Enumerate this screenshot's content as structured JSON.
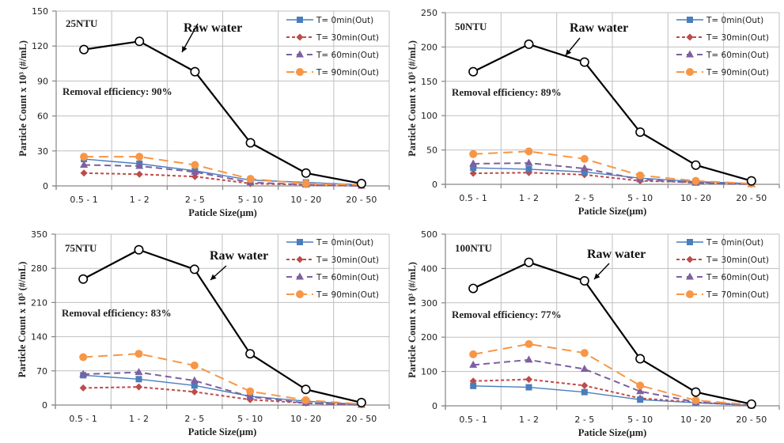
{
  "chart_data": [
    {
      "type": "line",
      "panel_label": "25NTU",
      "annotation": "Raw water",
      "efficiency_label": "Removal efficiency: 90%",
      "xlabel": "Paticle Size(μm)",
      "ylabel": "Particle Count x 10³  (#/mL)",
      "categories": [
        "0.5 - 1",
        "1 - 2",
        "2 - 5",
        "5 - 10",
        "10 - 20",
        "20 - 50"
      ],
      "ylim": [
        0,
        150
      ],
      "yticks": [
        0,
        30,
        60,
        90,
        120,
        150
      ],
      "grid": true,
      "legend_position": "top-right",
      "series": [
        {
          "name": "Raw water",
          "values": [
            117,
            124,
            98,
            37,
            11,
            2
          ],
          "in_legend": false
        },
        {
          "name": "T=  0min(Out)",
          "values": [
            23,
            19,
            13,
            5,
            3,
            1
          ]
        },
        {
          "name": "T=  30min(Out)",
          "values": [
            11,
            10,
            8,
            2,
            1,
            0
          ]
        },
        {
          "name": "T=  60min(Out)",
          "values": [
            18,
            17,
            12,
            3,
            1,
            0
          ]
        },
        {
          "name": "T=  90min(Out)",
          "values": [
            25,
            25,
            18,
            6,
            2,
            1
          ]
        }
      ]
    },
    {
      "type": "line",
      "panel_label": "50NTU",
      "annotation": "Raw water",
      "efficiency_label": "Removal efficiency: 89%",
      "xlabel": "Paticle Size(μm)",
      "ylabel": "Particle Count x 10³  (#/mL)",
      "categories": [
        "0.5 - 1",
        "1 - 2",
        "2 - 5",
        "5 - 10",
        "10 - 20",
        "20 - 50"
      ],
      "ylim": [
        0,
        250
      ],
      "yticks": [
        0,
        50,
        100,
        150,
        200,
        250
      ],
      "grid": true,
      "legend_position": "top-right",
      "series": [
        {
          "name": "Raw water",
          "values": [
            164,
            204,
            178,
            76,
            28,
            5
          ],
          "in_legend": false
        },
        {
          "name": "T=  0min(Out)",
          "values": [
            24,
            22,
            18,
            9,
            4,
            1
          ]
        },
        {
          "name": "T=  30min(Out)",
          "values": [
            16,
            17,
            14,
            5,
            3,
            0
          ]
        },
        {
          "name": "T=  60min(Out)",
          "values": [
            30,
            31,
            23,
            7,
            2,
            0
          ]
        },
        {
          "name": "T=  90min(Out)",
          "values": [
            44,
            48,
            37,
            13,
            5,
            1
          ]
        }
      ]
    },
    {
      "type": "line",
      "panel_label": "75NTU",
      "annotation": "Raw water",
      "efficiency_label": "Removal efficiency: 83%",
      "xlabel": "Paticle Size(μm)",
      "ylabel": "Particle Count x 10³  (#/mL)",
      "categories": [
        "0.5 - 1",
        "1 - 2",
        "2 - 5",
        "5 - 10",
        "10 - 20",
        "20 - 50"
      ],
      "ylim": [
        0,
        350
      ],
      "yticks": [
        0,
        70,
        140,
        210,
        280,
        350
      ],
      "grid": true,
      "legend_position": "top-right",
      "series": [
        {
          "name": "Raw water",
          "values": [
            258,
            318,
            278,
            105,
            32,
            5
          ],
          "in_legend": false
        },
        {
          "name": "T=  0min(Out)",
          "values": [
            61,
            53,
            40,
            18,
            8,
            1
          ]
        },
        {
          "name": "T=  30min(Out)",
          "values": [
            35,
            37,
            27,
            11,
            4,
            0
          ]
        },
        {
          "name": "T=  60min(Out)",
          "values": [
            63,
            67,
            50,
            17,
            4,
            0
          ]
        },
        {
          "name": "T=  90min(Out)",
          "values": [
            98,
            105,
            81,
            28,
            10,
            2
          ]
        }
      ]
    },
    {
      "type": "line",
      "panel_label": "100NTU",
      "annotation": "Raw water",
      "efficiency_label": "Removal efficiency: 77%",
      "xlabel": "Paticle Size(μm)",
      "ylabel": "Particle Count x 10³  (#/mL)",
      "categories": [
        "0.5 - 1",
        "1 - 2",
        "2 - 5",
        "5 - 10",
        "10 - 20",
        "20 - 50"
      ],
      "ylim": [
        0,
        500
      ],
      "yticks": [
        0,
        100,
        200,
        300,
        400,
        500
      ],
      "grid": true,
      "legend_position": "top-right",
      "series": [
        {
          "name": "Raw water",
          "values": [
            342,
            418,
            364,
            137,
            40,
            5
          ],
          "in_legend": false
        },
        {
          "name": "T=  0min(Out)",
          "values": [
            58,
            54,
            40,
            18,
            9,
            1
          ]
        },
        {
          "name": "T=  30min(Out)",
          "values": [
            72,
            77,
            59,
            22,
            10,
            1
          ]
        },
        {
          "name": "T=  60min(Out)",
          "values": [
            119,
            134,
            107,
            42,
            11,
            2
          ]
        },
        {
          "name": "T=  70min(Out)",
          "values": [
            150,
            180,
            154,
            59,
            16,
            3
          ]
        }
      ]
    }
  ],
  "style": {
    "colors": {
      "raw": "#000000",
      "t0": "#4a7ebb",
      "t30": "#be4b48",
      "t60": "#7d60a0",
      "t90": "#f79646",
      "grid": "#bfbfbf",
      "axis": "#868686"
    },
    "markers": [
      "open-circle",
      "square",
      "diamond",
      "triangle",
      "circle"
    ]
  }
}
